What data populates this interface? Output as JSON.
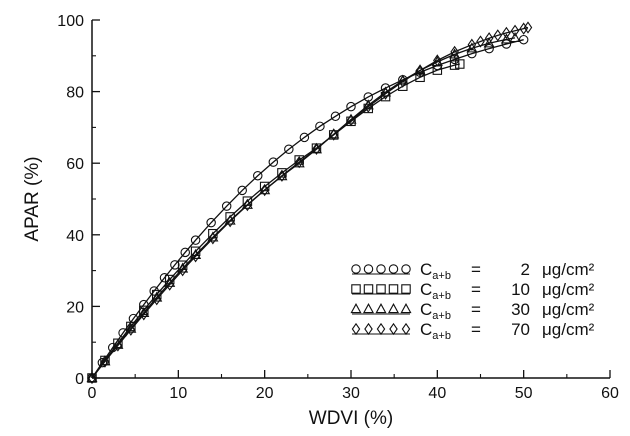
{
  "chart_data": {
    "type": "line",
    "xlabel": "WDVI (%)",
    "ylabel": "APAR (%)",
    "xlim": [
      0,
      60
    ],
    "ylim": [
      0,
      100
    ],
    "xticks": [
      0,
      10,
      20,
      30,
      40,
      50,
      60
    ],
    "yticks": [
      0,
      20,
      40,
      60,
      80,
      100
    ],
    "grid": false,
    "legend_position": "bottom-right",
    "series": [
      {
        "marker": "circle",
        "legend": {
          "symbol": "Ca+b",
          "equals": "=",
          "value": "2",
          "unit": "μg/cm²"
        },
        "x": [
          0,
          1.2,
          2.4,
          3.6,
          4.8,
          6.0,
          7.2,
          8.4,
          9.6,
          10.8,
          12.0,
          13.8,
          15.6,
          17.4,
          19.2,
          21.0,
          22.8,
          24.6,
          26.4,
          28.2,
          30.0,
          32.0,
          34.0,
          36.0,
          38.0,
          40.0,
          42.0,
          44.0,
          46.0,
          48.0,
          50.0
        ],
        "y": [
          0,
          4.3,
          8.5,
          12.6,
          16.6,
          20.5,
          24.3,
          28.0,
          31.6,
          35.1,
          38.5,
          43.4,
          48.0,
          52.4,
          56.5,
          60.3,
          63.9,
          67.2,
          70.3,
          73.1,
          75.8,
          78.5,
          81.0,
          83.3,
          85.4,
          87.3,
          89.0,
          90.6,
          92.0,
          93.3,
          94.5
        ]
      },
      {
        "marker": "square",
        "legend": {
          "symbol": "Ca+b",
          "equals": "=",
          "value": "10",
          "unit": "μg/cm²"
        },
        "x": [
          0,
          1.5,
          3.0,
          4.5,
          6.0,
          7.5,
          9.0,
          10.5,
          12.0,
          14.0,
          16.0,
          18.0,
          20.0,
          22.0,
          24.0,
          26.0,
          28.0,
          30.0,
          32.0,
          34.0,
          36.0,
          38.0,
          40.0,
          42.0,
          42.6
        ],
        "y": [
          0,
          4.9,
          9.7,
          14.4,
          18.9,
          23.3,
          27.5,
          31.5,
          35.4,
          40.3,
          45.0,
          49.4,
          53.5,
          57.3,
          60.9,
          64.2,
          67.9,
          71.7,
          75.3,
          78.6,
          81.5,
          84.0,
          86.0,
          87.4,
          87.7
        ]
      },
      {
        "marker": "triangle",
        "legend": {
          "symbol": "Ca+b",
          "equals": "=",
          "value": "30",
          "unit": "μg/cm²"
        },
        "x": [
          0,
          1.5,
          3.0,
          4.5,
          6.0,
          7.5,
          9.0,
          10.5,
          12.0,
          14.0,
          16.0,
          18.0,
          20.0,
          22.0,
          24.0,
          26.0,
          28.0,
          30.0,
          32.0,
          34.0,
          36.0,
          38.0,
          40.0,
          42.0,
          44.0,
          46.0,
          48.0,
          49.0
        ],
        "y": [
          0,
          4.7,
          9.3,
          13.8,
          18.2,
          22.5,
          26.6,
          30.6,
          34.4,
          39.3,
          44.0,
          48.4,
          52.5,
          56.4,
          60.0,
          63.9,
          68.1,
          72.2,
          76.2,
          79.8,
          83.1,
          85.9,
          88.3,
          90.4,
          92.1,
          93.5,
          94.6,
          95.0
        ]
      },
      {
        "marker": "diamond",
        "legend": {
          "symbol": "Ca+b",
          "equals": "=",
          "value": "70",
          "unit": "μg/cm²"
        },
        "x": [
          0,
          1.5,
          3.0,
          4.5,
          6.0,
          7.5,
          9.0,
          10.5,
          12.0,
          14.0,
          16.0,
          18.0,
          20.0,
          22.0,
          24.0,
          26.0,
          28.0,
          30.0,
          32.0,
          34.0,
          36.0,
          38.0,
          40.0,
          42.0,
          44.0,
          45.0,
          46.0,
          47.0,
          48.0,
          49.0,
          50.0,
          50.5
        ],
        "y": [
          0,
          4.6,
          9.1,
          13.5,
          17.8,
          22.0,
          26.1,
          30.1,
          34.0,
          39.0,
          43.8,
          48.3,
          52.5,
          56.5,
          60.3,
          64.0,
          68.0,
          72.0,
          75.8,
          79.4,
          82.8,
          85.9,
          88.7,
          91.1,
          93.1,
          94.0,
          94.9,
          95.7,
          96.4,
          97.0,
          97.6,
          97.9
        ]
      }
    ]
  }
}
